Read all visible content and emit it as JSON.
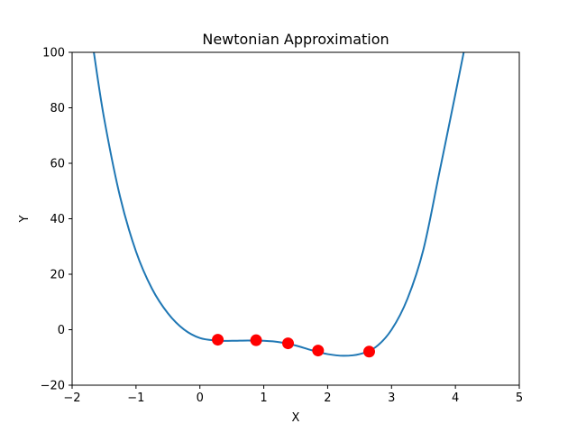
{
  "chart_data": {
    "type": "line",
    "title": "Newtonian Approximation",
    "xlabel": "X",
    "ylabel": "Y",
    "xlim": [
      -2,
      5
    ],
    "ylim": [
      -20,
      100
    ],
    "xticks": [
      -2,
      -1,
      0,
      1,
      2,
      3,
      4,
      5
    ],
    "yticks": [
      -20,
      0,
      20,
      40,
      60,
      80,
      100
    ],
    "xtick_labels": [
      "−2",
      "−1",
      "0",
      "1",
      "2",
      "3",
      "4",
      "5"
    ],
    "ytick_labels": [
      "−20",
      "0",
      "20",
      "40",
      "60",
      "80",
      "100"
    ],
    "grid": false,
    "series": [
      {
        "type": "line",
        "color": "#1f77b4",
        "x": [
          -1.66,
          -1.5,
          -1.25,
          -1.0,
          -0.75,
          -0.5,
          -0.25,
          0.0,
          0.25,
          0.5,
          0.75,
          1.0,
          1.25,
          1.5,
          1.75,
          2.0,
          2.25,
          2.5,
          2.75,
          3.0,
          3.25,
          3.5,
          3.75,
          4.0,
          4.13
        ],
        "y": [
          100.0,
          76.3,
          48.0,
          28.2,
          14.8,
          5.9,
          0.1,
          -3.0,
          -3.9,
          -4.0,
          -3.9,
          -4.0,
          -4.5,
          -5.7,
          -7.4,
          -8.8,
          -9.4,
          -8.8,
          -6.3,
          0.0,
          11.2,
          29.0,
          56.8,
          85.0,
          100.0
        ]
      },
      {
        "type": "scatter",
        "color": "#ff0000",
        "x": [
          0.28,
          0.88,
          1.38,
          1.85,
          2.65
        ],
        "y": [
          -3.6,
          -3.8,
          -4.9,
          -7.5,
          -7.9
        ]
      }
    ]
  }
}
